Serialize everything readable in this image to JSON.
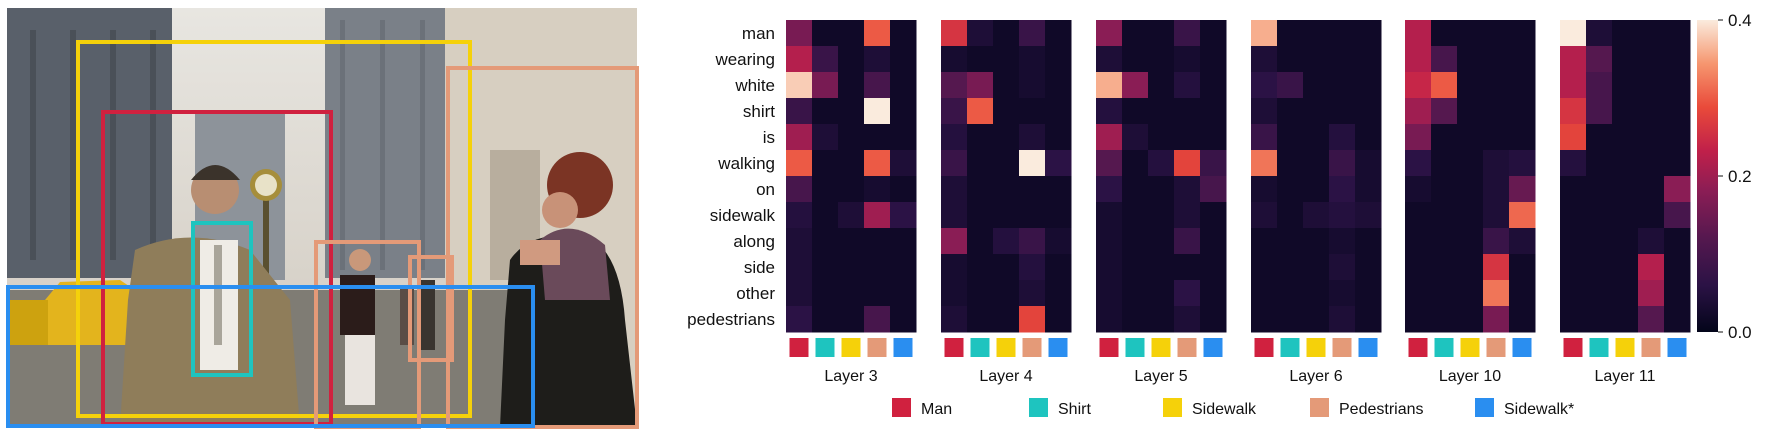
{
  "colors": {
    "Man": "#d0213f",
    "Shirt": "#1ec4bf",
    "Sidewalk": "#f5d10a",
    "Pedestrians": "#e49a78",
    "Sidewalk*": "#2a8ef0"
  },
  "photo": {
    "boxes": [
      {
        "label": "Sidewalk",
        "color": "Sidewalk"
      },
      {
        "label": "Man",
        "color": "Man"
      },
      {
        "label": "Shirt",
        "color": "Shirt"
      },
      {
        "label": "Pedestrians",
        "color": "Pedestrians"
      },
      {
        "label": "Pedestrians",
        "color": "Pedestrians"
      },
      {
        "label": "Pedestrians",
        "color": "Pedestrians"
      },
      {
        "label": "Sidewalk*",
        "color": "Sidewalk*"
      }
    ]
  },
  "chart_data": {
    "type": "heatmap",
    "rows": [
      "man",
      "wearing",
      "white",
      "shirt",
      "is",
      "walking",
      "on",
      "sidewalk",
      "along",
      "side",
      "other",
      "pedestrians"
    ],
    "columns": [
      "Man",
      "Shirt",
      "Sidewalk",
      "Pedestrians",
      "Sidewalk*"
    ],
    "colorbar": {
      "min": 0.0,
      "max": 0.4,
      "ticks": [
        "0.0",
        "0.2",
        "0.4"
      ],
      "tick_values": [
        0.0,
        0.2,
        0.4
      ]
    },
    "legend": [
      "Man",
      "Shirt",
      "Sidewalk",
      "Pedestrians",
      "Sidewalk*"
    ],
    "panels": [
      {
        "title": "Layer 3",
        "values": [
          [
            0.16,
            0.02,
            0.02,
            0.3,
            0.02
          ],
          [
            0.22,
            0.08,
            0.02,
            0.04,
            0.02
          ],
          [
            0.38,
            0.16,
            0.02,
            0.1,
            0.02
          ],
          [
            0.08,
            0.02,
            0.02,
            0.4,
            0.02
          ],
          [
            0.2,
            0.04,
            0.02,
            0.02,
            0.02
          ],
          [
            0.3,
            0.02,
            0.02,
            0.3,
            0.04
          ],
          [
            0.1,
            0.02,
            0.02,
            0.03,
            0.02
          ],
          [
            0.05,
            0.02,
            0.04,
            0.2,
            0.06
          ],
          [
            0.04,
            0.02,
            0.02,
            0.02,
            0.02
          ],
          [
            0.04,
            0.02,
            0.02,
            0.02,
            0.02
          ],
          [
            0.04,
            0.02,
            0.02,
            0.02,
            0.02
          ],
          [
            0.06,
            0.02,
            0.02,
            0.1,
            0.02
          ]
        ]
      },
      {
        "title": "Layer 4",
        "values": [
          [
            0.26,
            0.04,
            0.02,
            0.08,
            0.02
          ],
          [
            0.03,
            0.02,
            0.02,
            0.03,
            0.02
          ],
          [
            0.12,
            0.16,
            0.02,
            0.03,
            0.02
          ],
          [
            0.08,
            0.3,
            0.02,
            0.02,
            0.02
          ],
          [
            0.05,
            0.02,
            0.02,
            0.04,
            0.02
          ],
          [
            0.08,
            0.02,
            0.02,
            0.4,
            0.06
          ],
          [
            0.04,
            0.02,
            0.02,
            0.02,
            0.02
          ],
          [
            0.04,
            0.02,
            0.02,
            0.02,
            0.02
          ],
          [
            0.18,
            0.02,
            0.05,
            0.08,
            0.03
          ],
          [
            0.03,
            0.02,
            0.02,
            0.05,
            0.02
          ],
          [
            0.03,
            0.02,
            0.02,
            0.04,
            0.02
          ],
          [
            0.04,
            0.02,
            0.02,
            0.28,
            0.02
          ]
        ]
      },
      {
        "title": "Layer 5",
        "values": [
          [
            0.18,
            0.02,
            0.02,
            0.08,
            0.02
          ],
          [
            0.04,
            0.02,
            0.02,
            0.03,
            0.02
          ],
          [
            0.36,
            0.18,
            0.02,
            0.05,
            0.02
          ],
          [
            0.05,
            0.02,
            0.02,
            0.02,
            0.02
          ],
          [
            0.2,
            0.04,
            0.02,
            0.02,
            0.02
          ],
          [
            0.12,
            0.02,
            0.05,
            0.28,
            0.08
          ],
          [
            0.06,
            0.02,
            0.02,
            0.04,
            0.1
          ],
          [
            0.03,
            0.02,
            0.02,
            0.04,
            0.02
          ],
          [
            0.03,
            0.02,
            0.02,
            0.08,
            0.02
          ],
          [
            0.03,
            0.02,
            0.02,
            0.02,
            0.02
          ],
          [
            0.03,
            0.02,
            0.02,
            0.06,
            0.02
          ],
          [
            0.03,
            0.02,
            0.02,
            0.04,
            0.02
          ]
        ]
      },
      {
        "title": "Layer 6",
        "values": [
          [
            0.36,
            0.02,
            0.02,
            0.02,
            0.02
          ],
          [
            0.04,
            0.02,
            0.02,
            0.02,
            0.02
          ],
          [
            0.06,
            0.08,
            0.02,
            0.02,
            0.02
          ],
          [
            0.04,
            0.02,
            0.02,
            0.02,
            0.02
          ],
          [
            0.08,
            0.02,
            0.02,
            0.05,
            0.02
          ],
          [
            0.32,
            0.02,
            0.02,
            0.08,
            0.03
          ],
          [
            0.03,
            0.02,
            0.02,
            0.06,
            0.03
          ],
          [
            0.04,
            0.02,
            0.04,
            0.05,
            0.04
          ],
          [
            0.02,
            0.02,
            0.02,
            0.03,
            0.02
          ],
          [
            0.02,
            0.02,
            0.02,
            0.04,
            0.02
          ],
          [
            0.02,
            0.02,
            0.02,
            0.03,
            0.02
          ],
          [
            0.02,
            0.02,
            0.02,
            0.04,
            0.02
          ]
        ]
      },
      {
        "title": "Layer 10",
        "values": [
          [
            0.22,
            0.02,
            0.02,
            0.02,
            0.02
          ],
          [
            0.22,
            0.1,
            0.02,
            0.02,
            0.02
          ],
          [
            0.24,
            0.3,
            0.02,
            0.02,
            0.02
          ],
          [
            0.2,
            0.12,
            0.02,
            0.02,
            0.02
          ],
          [
            0.16,
            0.02,
            0.02,
            0.02,
            0.02
          ],
          [
            0.06,
            0.02,
            0.02,
            0.04,
            0.05
          ],
          [
            0.03,
            0.02,
            0.02,
            0.04,
            0.14
          ],
          [
            0.02,
            0.02,
            0.02,
            0.04,
            0.31
          ],
          [
            0.02,
            0.02,
            0.02,
            0.08,
            0.04
          ],
          [
            0.02,
            0.02,
            0.02,
            0.26,
            0.02
          ],
          [
            0.02,
            0.02,
            0.02,
            0.32,
            0.02
          ],
          [
            0.02,
            0.02,
            0.02,
            0.16,
            0.02
          ]
        ]
      },
      {
        "title": "Layer 11",
        "values": [
          [
            0.4,
            0.04,
            0.02,
            0.02,
            0.02
          ],
          [
            0.22,
            0.12,
            0.02,
            0.02,
            0.02
          ],
          [
            0.22,
            0.1,
            0.02,
            0.02,
            0.02
          ],
          [
            0.26,
            0.1,
            0.02,
            0.02,
            0.02
          ],
          [
            0.28,
            0.02,
            0.02,
            0.02,
            0.02
          ],
          [
            0.05,
            0.02,
            0.02,
            0.02,
            0.02
          ],
          [
            0.02,
            0.02,
            0.02,
            0.02,
            0.18
          ],
          [
            0.02,
            0.02,
            0.02,
            0.02,
            0.1
          ],
          [
            0.02,
            0.02,
            0.02,
            0.04,
            0.02
          ],
          [
            0.02,
            0.02,
            0.02,
            0.22,
            0.02
          ],
          [
            0.02,
            0.02,
            0.02,
            0.2,
            0.02
          ],
          [
            0.02,
            0.02,
            0.02,
            0.12,
            0.02
          ]
        ]
      }
    ]
  }
}
